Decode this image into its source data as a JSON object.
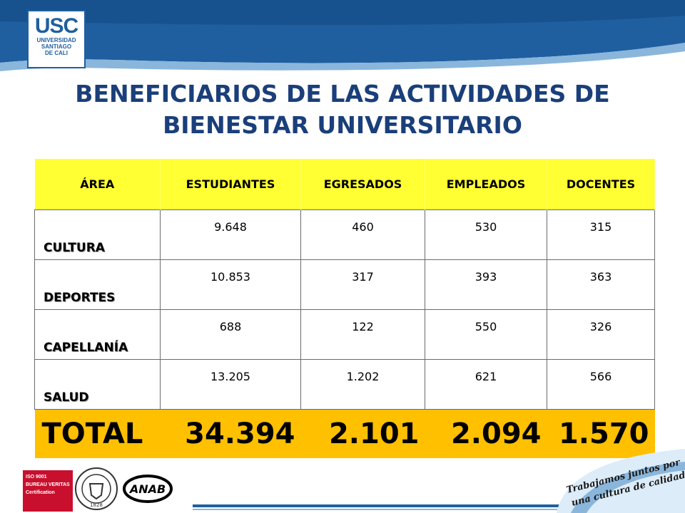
{
  "logo": {
    "mark": "USC",
    "line1": "UNIVERSIDAD",
    "line2": "SANTIAGO",
    "line3": "DE  CALI"
  },
  "title": {
    "line1": "BENEFICIARIOS DE LAS ACTIVIDADES DE",
    "line2": "BIENESTAR UNIVERSITARIO"
  },
  "table": {
    "headers": [
      "ÁREA",
      "ESTUDIANTES",
      "EGRESADOS",
      "EMPLEADOS",
      "DOCENTES"
    ],
    "rows": [
      {
        "area": "CULTURA",
        "values": [
          "9.648",
          "460",
          "530",
          "315"
        ]
      },
      {
        "area": "DEPORTES",
        "values": [
          "10.853",
          "317",
          "393",
          "363"
        ]
      },
      {
        "area": "CAPELLANÍA",
        "values": [
          "688",
          "122",
          "550",
          "326"
        ]
      },
      {
        "area": "SALUD",
        "values": [
          "13.205",
          "1.202",
          "621",
          "566"
        ]
      }
    ],
    "total": {
      "label": "TOTAL",
      "values": [
        "34.394",
        "2.101",
        "2.094",
        "1.570"
      ]
    }
  },
  "footer": {
    "cert_lines": [
      "ISO 9001",
      "BUREAU VERITAS",
      "Certification"
    ],
    "seal_year": "1828",
    "anab_label": "ANAB",
    "slogan_line1": "Trabajamos juntos por",
    "slogan_line2": "una cultura de calidad"
  },
  "colors": {
    "brand_blue": "#1f5fa0",
    "title_blue": "#1a3f7a",
    "header_yellow": "#ffff33",
    "total_orange": "#ffc000"
  }
}
